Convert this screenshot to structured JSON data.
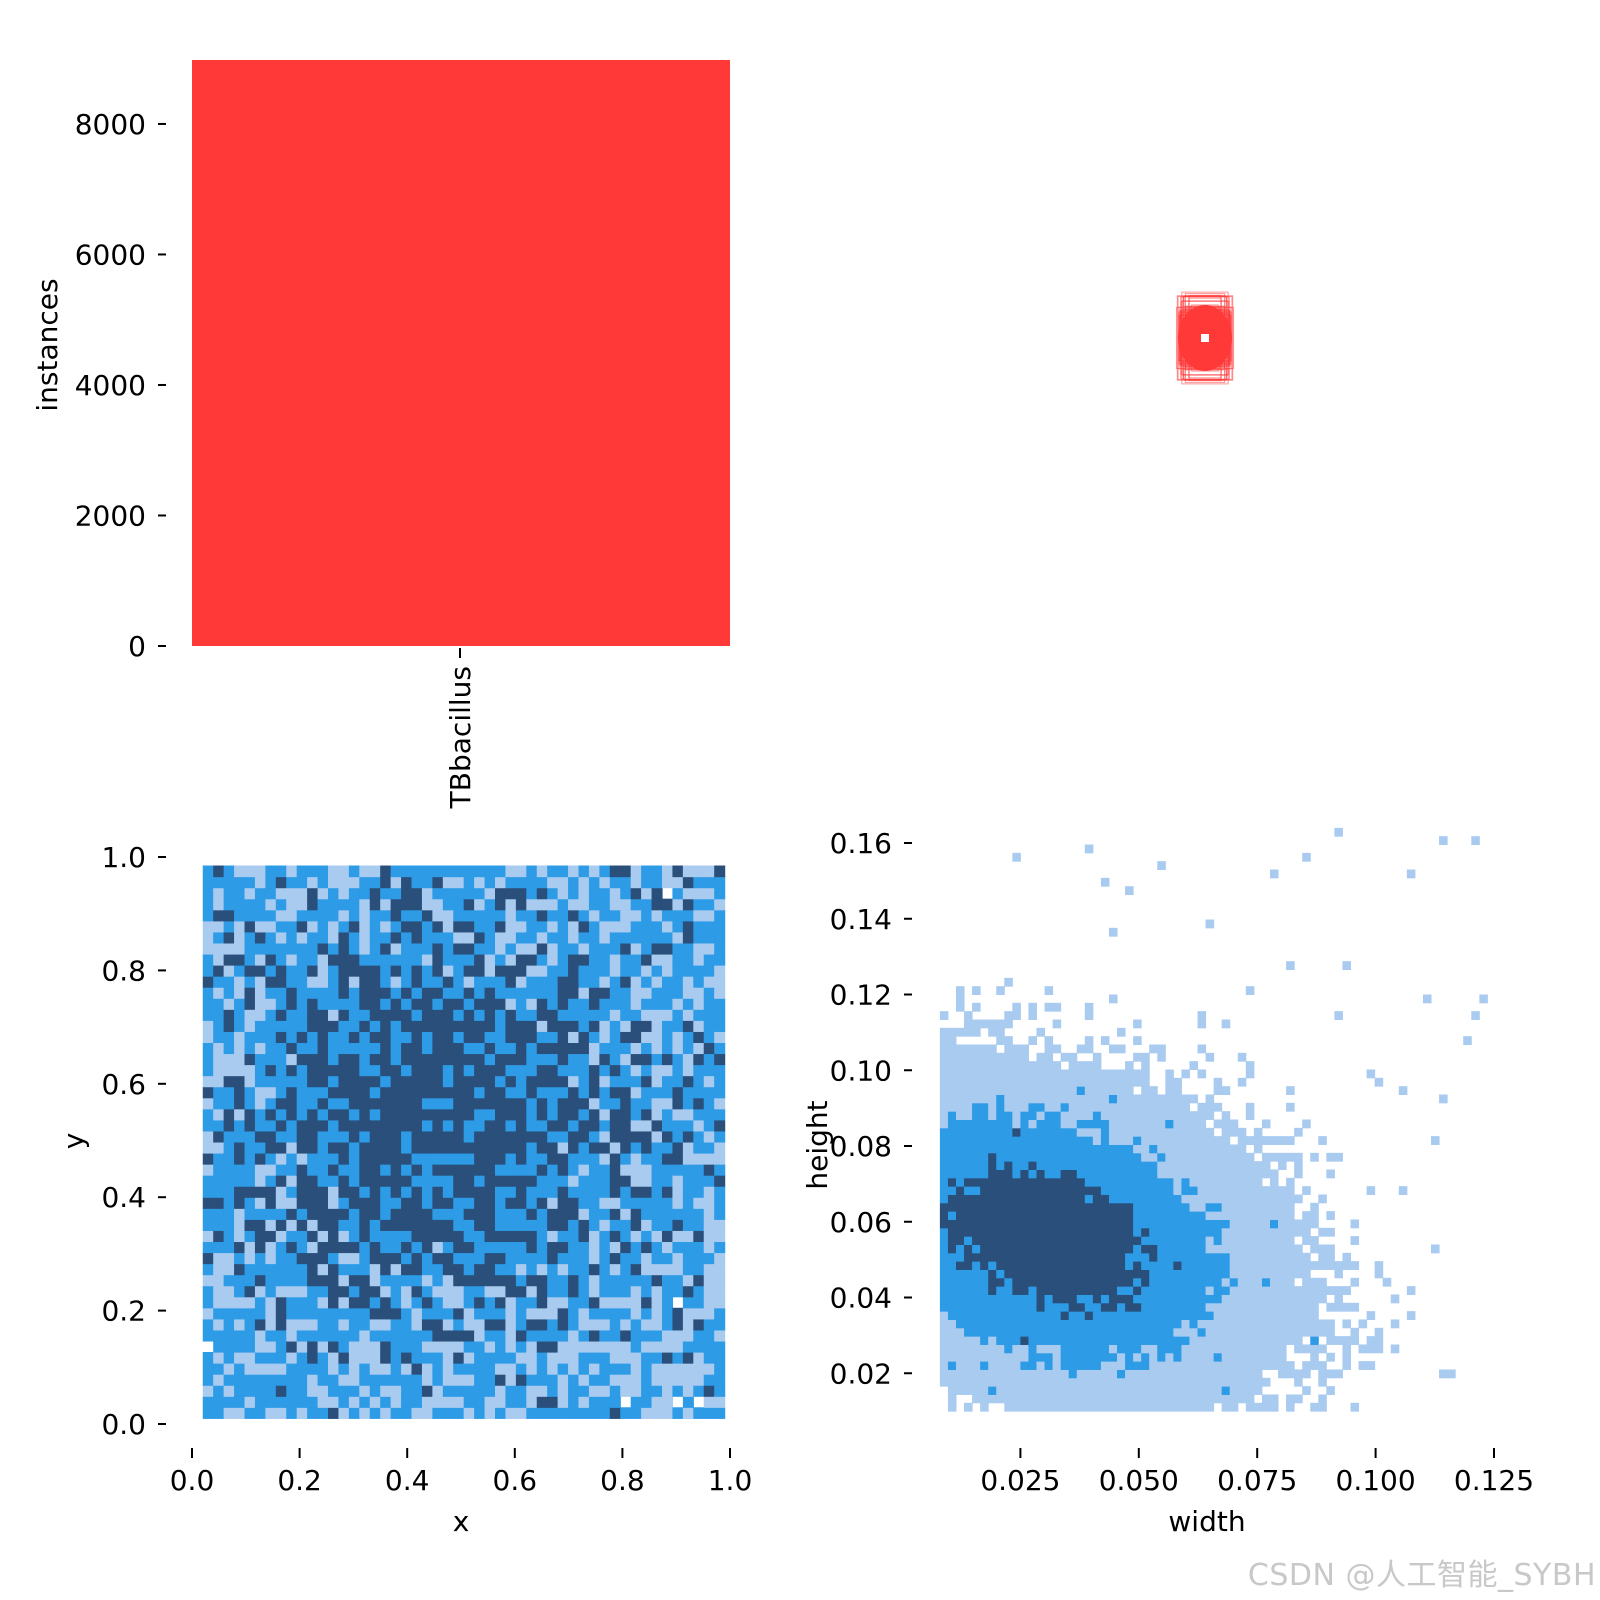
{
  "colors": {
    "bar": "#ff3838",
    "hist_light": "#a9cbf0",
    "hist_mid": "#2d9be6",
    "hist_dark": "#2a4f7a",
    "axis": "#000000"
  },
  "watermark": "CSDN @人工智能_SYBH",
  "chart_data": [
    {
      "id": "class-instances",
      "type": "bar",
      "categories": [
        "TBbacillus"
      ],
      "values": [
        8980
      ],
      "ylabel": "instances",
      "xlabel": "",
      "ylim": [
        0,
        8980
      ],
      "yticks": [
        0,
        2000,
        4000,
        6000,
        8000
      ],
      "ytick_labels": [
        "0",
        "2000",
        "4000",
        "6000",
        "8000"
      ],
      "grid": false,
      "legend": "none"
    },
    {
      "id": "box-overlay",
      "type": "scatter",
      "description_values": {
        "center_x": 0.5,
        "center_y": 0.5,
        "width": 0.04,
        "height": 0.05
      },
      "xlabel": "",
      "ylabel": "",
      "grid": false,
      "legend": "none"
    },
    {
      "id": "xy-density",
      "type": "heatmap",
      "xlabel": "x",
      "ylabel": "y",
      "xlim": [
        0.0,
        1.0
      ],
      "ylim": [
        0.0,
        1.0
      ],
      "xticks": [
        0.0,
        0.2,
        0.4,
        0.6,
        0.8,
        1.0
      ],
      "xtick_labels": [
        "0.0",
        "0.2",
        "0.4",
        "0.6",
        "0.8",
        "1.0"
      ],
      "yticks": [
        0.0,
        0.2,
        0.4,
        0.6,
        0.8,
        1.0
      ],
      "ytick_labels": [
        "0.0",
        "0.2",
        "0.4",
        "0.6",
        "0.8",
        "1.0"
      ],
      "bins": 50,
      "peak": [
        0.45,
        0.55
      ],
      "grid": false,
      "legend": "none"
    },
    {
      "id": "wh-density",
      "type": "heatmap",
      "xlabel": "width",
      "ylabel": "height",
      "xlim": [
        0.0,
        0.125
      ],
      "ylim": [
        0.0,
        0.16
      ],
      "xticks": [
        0.025,
        0.05,
        0.075,
        0.1,
        0.125
      ],
      "xtick_labels": [
        "0.025",
        "0.050",
        "0.075",
        "0.100",
        "0.125"
      ],
      "yticks": [
        0.02,
        0.04,
        0.06,
        0.08,
        0.1,
        0.12,
        0.14,
        0.16
      ],
      "ytick_labels": [
        "0.02",
        "0.04",
        "0.06",
        "0.08",
        "0.10",
        "0.12",
        "0.14",
        "0.16"
      ],
      "peak": [
        0.03,
        0.055
      ],
      "grid": false,
      "legend": "none"
    }
  ]
}
